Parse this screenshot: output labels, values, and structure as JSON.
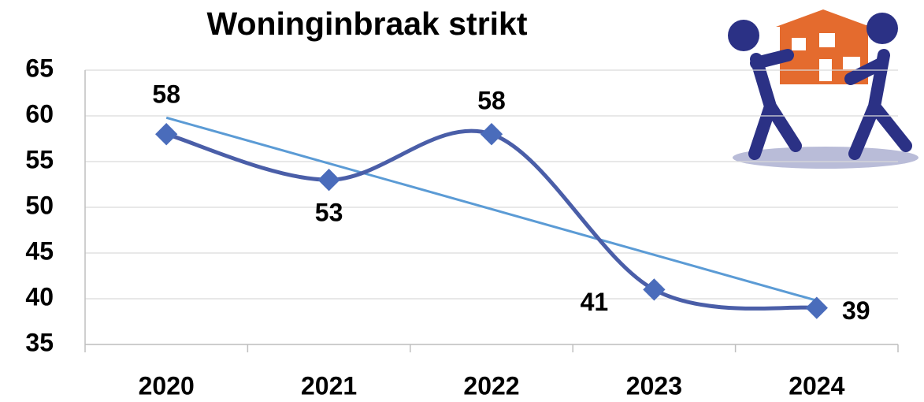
{
  "chart_data": {
    "type": "line",
    "title": "Woninginbraak strikt",
    "categories": [
      "2020",
      "2021",
      "2022",
      "2023",
      "2024"
    ],
    "series": [
      {
        "name": "Woninginbraak strikt",
        "color": "#4a5ea8",
        "marker_color": "#4a6cbb",
        "values": [
          58,
          53,
          58,
          41,
          39
        ]
      }
    ],
    "ylim": [
      35,
      65
    ],
    "yticks": [
      35,
      40,
      45,
      50,
      55,
      60,
      65
    ],
    "grid": true,
    "smooth": true,
    "trendline": true,
    "trendline_color": "#5b9bd5"
  }
}
